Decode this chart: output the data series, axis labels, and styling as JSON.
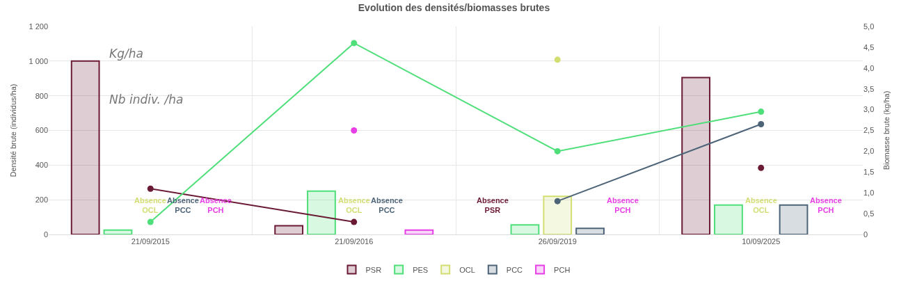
{
  "chart_data": {
    "type": "bar",
    "title": "Evolution des densités/biomasses brutes",
    "xlabel": null,
    "ylabel": "Densité brute (individus/ha)",
    "y2label": "Biomasse brute (kg/ha)",
    "categories": [
      "21/09/2015",
      "21/09/2016",
      "26/09/2019",
      "10/09/2025"
    ],
    "series": [
      {
        "name": "PSR",
        "color": "#6b1a33",
        "values": [
          1000,
          50,
          null,
          905
        ],
        "value_labels": [
          null,
          null,
          "Absence\nPSR",
          null
        ]
      },
      {
        "name": "PES",
        "color": "#4fdf7a",
        "values": [
          25,
          250,
          55,
          170
        ],
        "value_labels": [
          null,
          null,
          null,
          null
        ]
      },
      {
        "name": "OCL",
        "color": "#d2de72",
        "values": [
          null,
          null,
          220,
          null
        ],
        "value_labels": [
          "Absence\nOCL",
          "Absence\nOCL",
          null,
          "Absence\nOCL"
        ]
      },
      {
        "name": "PCC",
        "color": "#4d6478",
        "values": [
          null,
          null,
          35,
          170
        ],
        "value_labels": [
          "Absence\nPCC",
          "Absence\nPCC",
          null,
          null
        ]
      },
      {
        "name": "PCH",
        "color": "#e83ee6",
        "values": [
          null,
          25,
          null,
          null
        ],
        "value_labels": [
          "Absence\nPCH",
          null,
          "Absence\nPCH",
          "Absence\nPCH"
        ]
      },
      {
        "type": "line",
        "axis": "y2",
        "color": "#6b1a33",
        "values": [
          1.1,
          0.3,
          null,
          1.6
        ]
      },
      {
        "type": "line",
        "axis": "y2",
        "color": "#4fdf7a",
        "values": [
          0.3,
          4.6,
          2.0,
          2.95
        ]
      },
      {
        "type": "line",
        "axis": "y2",
        "color": "#d2de72",
        "values": [
          null,
          null,
          4.2,
          null
        ]
      },
      {
        "type": "line",
        "axis": "y2",
        "color": "#4d6478",
        "values": [
          null,
          null,
          0.8,
          2.65
        ]
      },
      {
        "type": "line",
        "axis": "y2",
        "color": "#e83ee6",
        "values": [
          null,
          2.5,
          null,
          null
        ]
      }
    ],
    "ylim": [
      0,
      1200
    ],
    "yticks": [
      0,
      200,
      400,
      600,
      800,
      {
        "value": 1000,
        "label": "1 000"
      },
      {
        "value": 1200,
        "label": "1 200"
      }
    ],
    "y2lim": [
      0,
      5
    ],
    "y2ticks": [
      0,
      {
        "value": 0.5,
        "label": "0,5"
      },
      {
        "value": 1,
        "label": "1,0"
      },
      {
        "value": 1.5,
        "label": "1,5"
      },
      {
        "value": 2,
        "label": "2,0"
      },
      {
        "value": 2.5,
        "label": "2,5"
      },
      {
        "value": 3,
        "label": "3,0"
      },
      {
        "value": 3.5,
        "label": "3,5"
      },
      {
        "value": 4,
        "label": "4,0"
      },
      {
        "value": 4.5,
        "label": "4,5"
      },
      {
        "value": 5,
        "label": "5,0"
      }
    ],
    "annotations": [
      "Kg/ha",
      "Nb indiv. /ha"
    ],
    "grid": true,
    "legend": "bottom",
    "marker": "circle",
    "line_style": "solid"
  }
}
